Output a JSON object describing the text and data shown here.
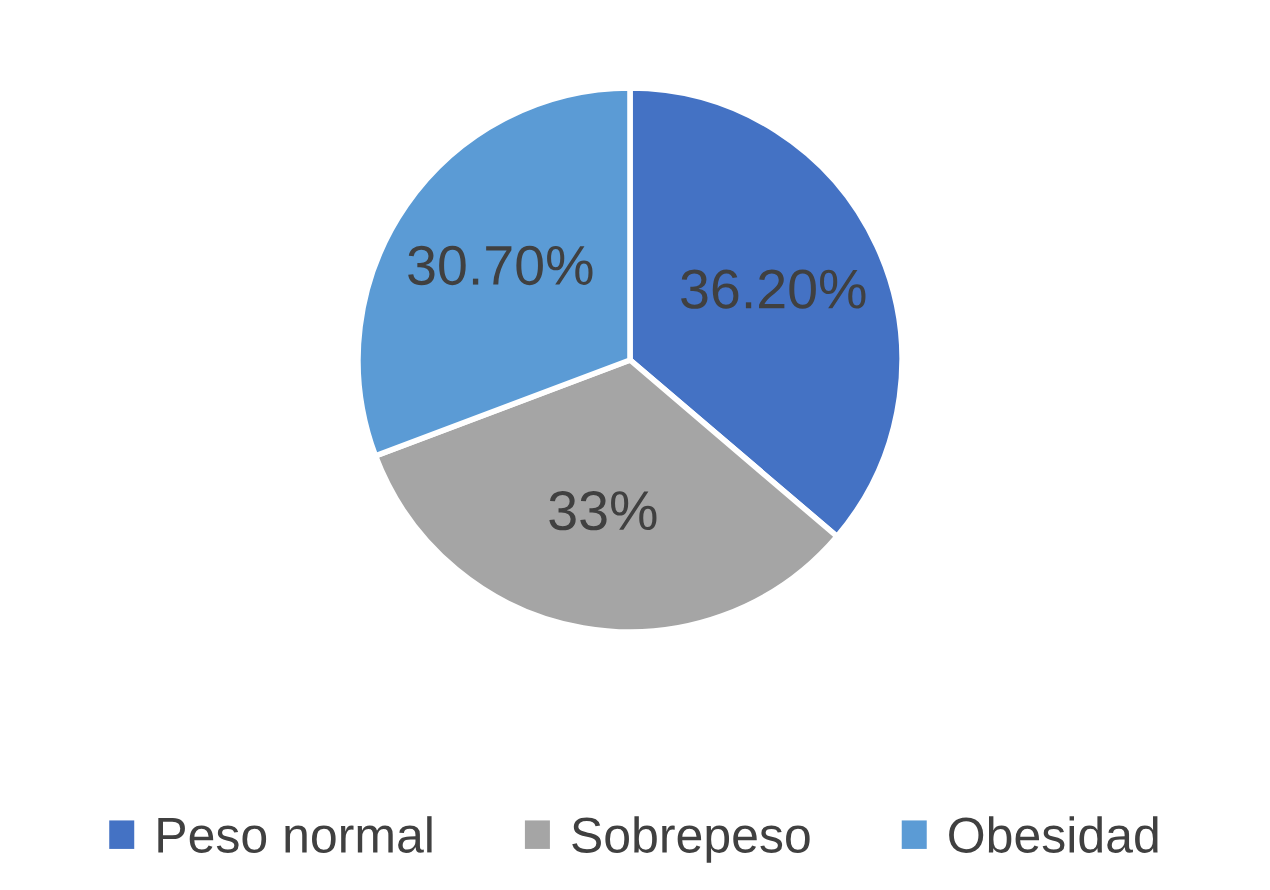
{
  "chart_data": {
    "type": "pie",
    "categories": [
      "Peso normal",
      "Sobrepeso",
      "Obesidad"
    ],
    "values": [
      36.2,
      33,
      30.7
    ],
    "value_labels": [
      "36.20%",
      "33%",
      "30.70%"
    ],
    "colors": [
      "#4472c4",
      "#a5a5a5",
      "#5b9bd5"
    ],
    "legend": "bottom"
  }
}
